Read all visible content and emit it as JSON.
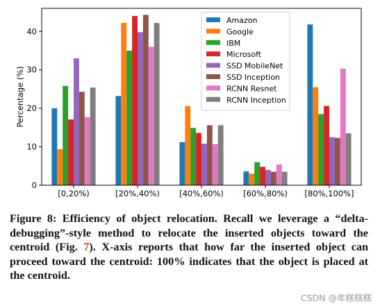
{
  "chart_data": {
    "type": "bar",
    "ylabel": "Percentage (%)",
    "ylim": [
      0,
      46
    ],
    "yticks": [
      0,
      10,
      20,
      30,
      40
    ],
    "categories": [
      "[0,20%)",
      "[20%,40%)",
      "[40%,60%)",
      "[60%,80%)",
      "[80%,100%]"
    ],
    "legend_position": "top-center",
    "series": [
      {
        "name": "Amazon",
        "color": "#1f77b4",
        "values": [
          20.0,
          23.2,
          11.2,
          3.6,
          41.8
        ]
      },
      {
        "name": "Google",
        "color": "#ff7f0e",
        "values": [
          9.4,
          42.2,
          20.6,
          3.0,
          25.5
        ]
      },
      {
        "name": "IBM",
        "color": "#2ca02c",
        "values": [
          25.8,
          35.0,
          14.9,
          6.0,
          18.5
        ]
      },
      {
        "name": "Microsoft",
        "color": "#d62728",
        "values": [
          17.1,
          44.0,
          13.6,
          4.8,
          20.6
        ]
      },
      {
        "name": "SSD MobileNet",
        "color": "#9467bd",
        "values": [
          33.0,
          39.8,
          10.8,
          4.0,
          12.5
        ]
      },
      {
        "name": "SSD Inception",
        "color": "#8c564b",
        "values": [
          24.3,
          44.3,
          15.6,
          3.5,
          12.3
        ]
      },
      {
        "name": "RCNN Resnet",
        "color": "#e377c2",
        "values": [
          17.7,
          36.0,
          10.7,
          5.4,
          30.3
        ]
      },
      {
        "name": "RCNN Inception",
        "color": "#7f7f7f",
        "values": [
          25.4,
          42.2,
          15.6,
          3.5,
          13.5
        ]
      }
    ]
  },
  "caption": {
    "part1": "Figure 8: Efficiency of object relocation. Recall we leverage a “delta-debugging”-style method to relocate the inserted objects toward the centroid (Fig. ",
    "figref": "7",
    "part2": "). X-axis reports that how far the inserted object can proceed toward the centroid: 100% indicates that the object is placed at the centroid."
  },
  "watermark": "CSDN @年糕糕糕"
}
